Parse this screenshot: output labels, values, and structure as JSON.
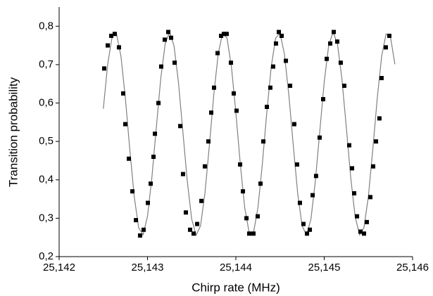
{
  "chart_data": {
    "type": "scatter",
    "xlabel": "Chirp rate (MHz)",
    "ylabel": "Transition probability",
    "xlim": [
      25142,
      25146
    ],
    "xticks": [
      {
        "value": 25142,
        "label": "25,142"
      },
      {
        "value": 25143,
        "label": "25,143"
      },
      {
        "value": 25144,
        "label": "25,144"
      },
      {
        "value": 25145,
        "label": "25,145"
      },
      {
        "value": 25146,
        "label": "25,146"
      }
    ],
    "ylim": [
      0.2,
      0.85
    ],
    "yticks": [
      {
        "value": 0.2,
        "label": "0,2"
      },
      {
        "value": 0.3,
        "label": "0,3"
      },
      {
        "value": 0.4,
        "label": "0,4"
      },
      {
        "value": 0.5,
        "label": "0,5"
      },
      {
        "value": 0.6,
        "label": "0,6"
      },
      {
        "value": 0.7,
        "label": "0,7"
      },
      {
        "value": 0.8,
        "label": "0,8"
      }
    ],
    "series": [
      {
        "type": "scatter",
        "color": "#000000",
        "x": [
          25142.51,
          25142.55,
          25142.59,
          25142.629,
          25142.677,
          25142.725,
          25142.749,
          25142.789,
          25142.829,
          25142.869,
          25142.916,
          25142.956,
          25143.004,
          25143.036,
          25143.068,
          25143.084,
          25143.124,
          25143.155,
          25143.195,
          25143.235,
          25143.267,
          25143.307,
          25143.371,
          25143.402,
          25143.434,
          25143.482,
          25143.522,
          25143.562,
          25143.61,
          25143.649,
          25143.689,
          25143.721,
          25143.753,
          25143.793,
          25143.833,
          25143.865,
          25143.896,
          25143.944,
          25143.976,
          25144.008,
          25144.048,
          25144.08,
          25144.12,
          25144.151,
          25144.199,
          25144.247,
          25144.279,
          25144.311,
          25144.351,
          25144.39,
          25144.422,
          25144.454,
          25144.486,
          25144.518,
          25144.566,
          25144.614,
          25144.661,
          25144.693,
          25144.725,
          25144.765,
          25144.805,
          25144.837,
          25144.869,
          25144.908,
          25144.948,
          25144.988,
          25145.028,
          25145.068,
          25145.108,
          25145.147,
          25145.187,
          25145.227,
          25145.283,
          25145.315,
          25145.339,
          25145.371,
          25145.41,
          25145.45,
          25145.482,
          25145.522,
          25145.554,
          25145.586,
          25145.625,
          25145.649,
          25145.697,
          25145.737
        ],
        "values": [
          0.69,
          0.75,
          0.775,
          0.78,
          0.745,
          0.625,
          0.545,
          0.455,
          0.37,
          0.295,
          0.255,
          0.27,
          0.34,
          0.39,
          0.46,
          0.52,
          0.6,
          0.695,
          0.765,
          0.785,
          0.77,
          0.705,
          0.54,
          0.415,
          0.315,
          0.27,
          0.26,
          0.285,
          0.345,
          0.435,
          0.5,
          0.575,
          0.64,
          0.73,
          0.775,
          0.78,
          0.78,
          0.705,
          0.625,
          0.58,
          0.44,
          0.37,
          0.3,
          0.26,
          0.26,
          0.305,
          0.39,
          0.5,
          0.59,
          0.64,
          0.695,
          0.755,
          0.785,
          0.775,
          0.71,
          0.645,
          0.545,
          0.44,
          0.34,
          0.285,
          0.26,
          0.27,
          0.36,
          0.41,
          0.51,
          0.61,
          0.715,
          0.755,
          0.785,
          0.76,
          0.705,
          0.645,
          0.49,
          0.43,
          0.365,
          0.305,
          0.265,
          0.26,
          0.29,
          0.355,
          0.435,
          0.5,
          0.56,
          0.665,
          0.745,
          0.775
        ]
      },
      {
        "type": "line",
        "color": "#808080",
        "x": [
          25142.5,
          25142.55,
          25142.6,
          25142.65,
          25142.7,
          25142.75,
          25142.8,
          25142.85,
          25142.9,
          25142.95,
          25143.0,
          25143.05,
          25143.1,
          25143.15,
          25143.2,
          25143.25,
          25143.3,
          25143.35,
          25143.4,
          25143.45,
          25143.5,
          25143.55,
          25143.6,
          25143.65,
          25143.7,
          25143.75,
          25143.8,
          25143.85,
          25143.9,
          25143.95,
          25144.0,
          25144.05,
          25144.1,
          25144.15,
          25144.2,
          25144.25,
          25144.3,
          25144.35,
          25144.4,
          25144.45,
          25144.5,
          25144.55,
          25144.6,
          25144.65,
          25144.7,
          25144.75,
          25144.8,
          25144.85,
          25144.9,
          25144.95,
          25145.0,
          25145.05,
          25145.1,
          25145.15,
          25145.2,
          25145.25,
          25145.3,
          25145.35,
          25145.4,
          25145.45,
          25145.5,
          25145.55,
          25145.6,
          25145.65,
          25145.7,
          25145.75,
          25145.8
        ],
        "values": [
          0.585,
          0.702,
          0.773,
          0.779,
          0.721,
          0.611,
          0.478,
          0.356,
          0.275,
          0.257,
          0.305,
          0.407,
          0.537,
          0.664,
          0.754,
          0.785,
          0.749,
          0.655,
          0.526,
          0.397,
          0.298,
          0.256,
          0.28,
          0.365,
          0.489,
          0.621,
          0.728,
          0.782,
          0.769,
          0.694,
          0.575,
          0.442,
          0.328,
          0.263,
          0.263,
          0.328,
          0.442,
          0.575,
          0.694,
          0.769,
          0.782,
          0.727,
          0.62,
          0.489,
          0.364,
          0.28,
          0.256,
          0.298,
          0.398,
          0.527,
          0.655,
          0.749,
          0.785,
          0.754,
          0.663,
          0.537,
          0.406,
          0.304,
          0.257,
          0.276,
          0.357,
          0.48,
          0.612,
          0.722,
          0.78,
          0.772,
          0.701
        ]
      }
    ]
  }
}
